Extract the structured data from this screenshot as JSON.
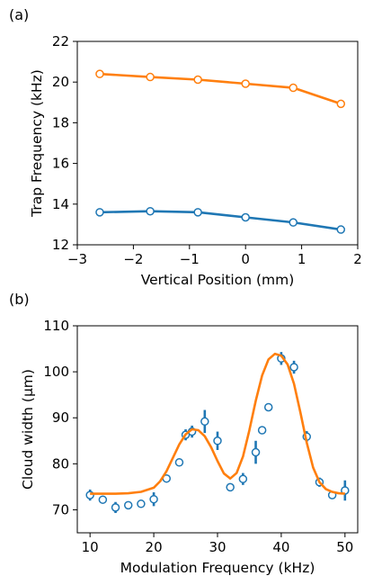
{
  "chart_data": [
    {
      "panel_label": "(a)",
      "type": "line",
      "xlabel": "Vertical Position (mm)",
      "ylabel": "Trap Frequency (kHz)",
      "xlim": [
        -3,
        2
      ],
      "ylim": [
        12,
        22
      ],
      "xticks": [
        -3,
        -2,
        -1,
        0,
        1,
        2
      ],
      "xtick_labels": [
        "−3",
        "−2",
        "−1",
        "0",
        "1",
        "2"
      ],
      "yticks": [
        12,
        14,
        16,
        18,
        20,
        22
      ],
      "ytick_labels": [
        "12",
        "14",
        "16",
        "18",
        "20",
        "22"
      ],
      "grid": false,
      "series": [
        {
          "color": "#ff7f0e",
          "x": [
            -2.6,
            -1.7,
            -0.85,
            0.0,
            0.85,
            1.7
          ],
          "y": [
            20.4,
            20.25,
            20.12,
            19.92,
            19.72,
            18.93
          ]
        },
        {
          "color": "#1f77b4",
          "x": [
            -2.6,
            -1.7,
            -0.85,
            0.0,
            0.85,
            1.7
          ],
          "y": [
            13.6,
            13.65,
            13.6,
            13.35,
            13.1,
            12.75
          ]
        }
      ]
    },
    {
      "panel_label": "(b)",
      "type": "scatter",
      "xlabel": "Modulation Frequency (kHz)",
      "ylabel": "Cloud width (μm)",
      "xlim": [
        8,
        52
      ],
      "ylim": [
        65,
        110
      ],
      "xticks": [
        10,
        20,
        30,
        40,
        50
      ],
      "xtick_labels": [
        "10",
        "20",
        "30",
        "40",
        "50"
      ],
      "yticks": [
        70,
        80,
        90,
        100,
        110
      ],
      "ytick_labels": [
        "70",
        "80",
        "90",
        "100",
        "110"
      ],
      "grid": false,
      "series": [
        {
          "kind": "points_with_errorbars",
          "color": "#1f77b4",
          "x": [
            10,
            12,
            14,
            16,
            18,
            20,
            22,
            24,
            25,
            26,
            28,
            30,
            32,
            34,
            36,
            37,
            38,
            40,
            42,
            44,
            46,
            48,
            50
          ],
          "y": [
            73.2,
            72.2,
            70.5,
            71.0,
            71.3,
            72.3,
            76.8,
            80.3,
            86.3,
            87.0,
            89.2,
            85.0,
            74.9,
            76.7,
            82.5,
            87.3,
            92.3,
            102.9,
            101.0,
            85.9,
            76.0,
            73.2,
            74.2
          ],
          "err": [
            1.2,
            0.5,
            1.2,
            0.6,
            0.5,
            1.5,
            0.6,
            0.5,
            1.2,
            1.3,
            2.5,
            2.0,
            0.5,
            1.3,
            2.5,
            0.8,
            0.6,
            1.4,
            1.4,
            1.2,
            1.0,
            0.4,
            2.2
          ]
        },
        {
          "kind": "fit_curve",
          "color": "#ff7f0e",
          "x": [
            10,
            12,
            14,
            16,
            18,
            20,
            21,
            22,
            23,
            24,
            25,
            26,
            27,
            28,
            29,
            30,
            31,
            32,
            33,
            34,
            35,
            36,
            37,
            38,
            39,
            40,
            41,
            42,
            43,
            44,
            45,
            46,
            47,
            48,
            49,
            50
          ],
          "y": [
            73.5,
            73.5,
            73.5,
            73.6,
            73.9,
            74.8,
            76.2,
            78.4,
            81.3,
            84.2,
            86.4,
            87.5,
            87.3,
            86.0,
            83.6,
            80.6,
            77.9,
            76.8,
            78.0,
            81.6,
            87.3,
            93.7,
            99.2,
            102.7,
            103.9,
            103.5,
            101.6,
            97.4,
            91.2,
            84.6,
            79.2,
            76.0,
            74.5,
            73.9,
            73.6,
            73.5
          ]
        }
      ]
    }
  ]
}
